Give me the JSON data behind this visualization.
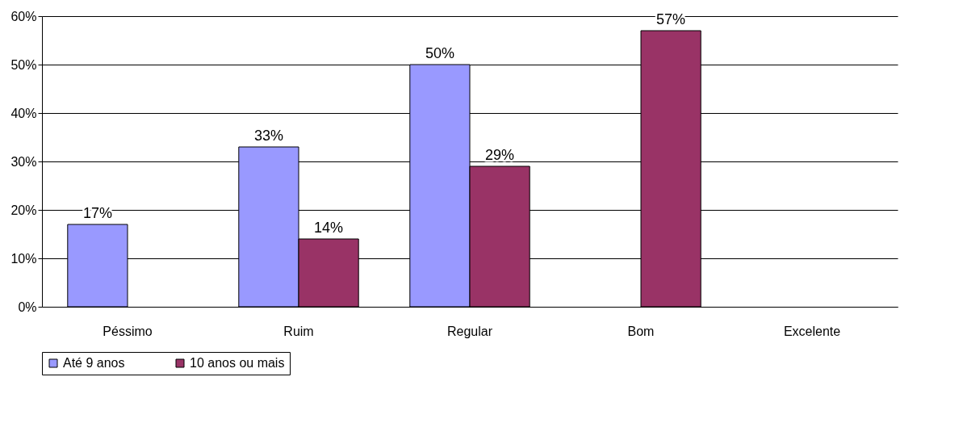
{
  "chart_data": {
    "type": "bar",
    "categories": [
      "Péssimo",
      "Ruim",
      "Regular",
      "Bom",
      "Excelente"
    ],
    "series": [
      {
        "name": "Até 9 anos",
        "color": "#9999ff",
        "values": [
          17,
          33,
          50,
          null,
          null
        ],
        "value_labels": [
          "17%",
          "33%",
          "50%",
          null,
          null
        ]
      },
      {
        "name": "10 anos ou mais",
        "color": "#993366",
        "values": [
          null,
          14,
          29,
          57,
          null
        ],
        "value_labels": [
          null,
          "14%",
          "29%",
          "57%",
          null
        ]
      }
    ],
    "ylim": [
      0,
      60
    ],
    "yticks": [
      {
        "value": 0,
        "label": "0%"
      },
      {
        "value": 10,
        "label": "10%"
      },
      {
        "value": 20,
        "label": "20%"
      },
      {
        "value": 30,
        "label": "30%"
      },
      {
        "value": 40,
        "label": "40%"
      },
      {
        "value": 50,
        "label": "50%"
      },
      {
        "value": 60,
        "label": "60%"
      }
    ],
    "grid": "y",
    "legend": "bottom"
  }
}
